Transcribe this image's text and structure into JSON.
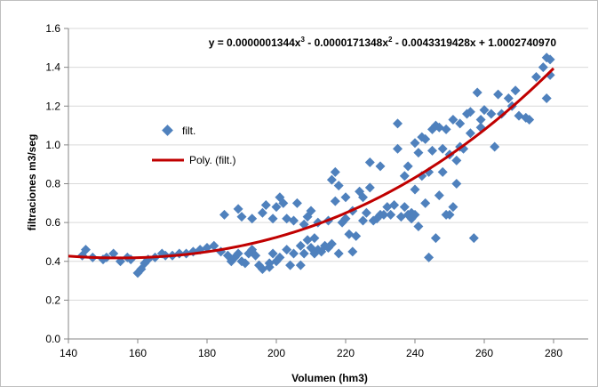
{
  "chart_data": {
    "type": "scatter",
    "xlabel": "Volumen (hm3)",
    "ylabel": "filtraciones m3/seg",
    "xlim": [
      140,
      290
    ],
    "ylim": [
      0.0,
      1.6
    ],
    "x_ticks": [
      "140",
      "160",
      "180",
      "200",
      "220",
      "240",
      "260",
      "280"
    ],
    "y_ticks": [
      "0.0",
      "0.2",
      "0.4",
      "0.6",
      "0.8",
      "1.0",
      "1.2",
      "1.4",
      "1.6"
    ],
    "grid": "horizontal",
    "legend_position": "left",
    "marker_color": "#4F81BD",
    "trend_color": "#C00000",
    "equation": {
      "prefix": "y = 0.0000001344x",
      "exp1": "3",
      "mid": " - 0.0000171348x",
      "exp2": "2",
      "suffix": " - 0.0043319428x + 1.0002740970"
    },
    "trendline": {
      "name": "Poly. (filt.)",
      "type": "polynomial",
      "coefficients": [
        1.344e-07,
        -1.71348e-05,
        -0.0043319428,
        1.000274097
      ],
      "x_range": [
        140,
        280
      ]
    },
    "series": [
      {
        "name": "filt.",
        "points": [
          [
            144,
            0.43
          ],
          [
            145,
            0.46
          ],
          [
            147,
            0.42
          ],
          [
            150,
            0.41
          ],
          [
            151,
            0.42
          ],
          [
            153,
            0.44
          ],
          [
            155,
            0.4
          ],
          [
            157,
            0.42
          ],
          [
            158,
            0.41
          ],
          [
            160,
            0.34
          ],
          [
            161,
            0.36
          ],
          [
            162,
            0.39
          ],
          [
            163,
            0.41
          ],
          [
            165,
            0.42
          ],
          [
            167,
            0.44
          ],
          [
            168,
            0.43
          ],
          [
            170,
            0.43
          ],
          [
            172,
            0.44
          ],
          [
            174,
            0.44
          ],
          [
            176,
            0.45
          ],
          [
            178,
            0.46
          ],
          [
            180,
            0.47
          ],
          [
            182,
            0.48
          ],
          [
            184,
            0.45
          ],
          [
            185,
            0.64
          ],
          [
            186,
            0.43
          ],
          [
            187,
            0.4
          ],
          [
            188,
            0.42
          ],
          [
            189,
            0.44
          ],
          [
            189,
            0.67
          ],
          [
            190,
            0.63
          ],
          [
            190,
            0.4
          ],
          [
            191,
            0.39
          ],
          [
            192,
            0.44
          ],
          [
            193,
            0.46
          ],
          [
            193,
            0.62
          ],
          [
            194,
            0.43
          ],
          [
            195,
            0.38
          ],
          [
            196,
            0.36
          ],
          [
            196,
            0.65
          ],
          [
            197,
            0.69
          ],
          [
            198,
            0.39
          ],
          [
            198,
            0.37
          ],
          [
            199,
            0.44
          ],
          [
            199,
            0.62
          ],
          [
            200,
            0.68
          ],
          [
            200,
            0.4
          ],
          [
            201,
            0.42
          ],
          [
            201,
            0.73
          ],
          [
            202,
            0.7
          ],
          [
            203,
            0.46
          ],
          [
            203,
            0.62
          ],
          [
            204,
            0.38
          ],
          [
            205,
            0.44
          ],
          [
            205,
            0.61
          ],
          [
            206,
            0.7
          ],
          [
            207,
            0.38
          ],
          [
            207,
            0.48
          ],
          [
            208,
            0.44
          ],
          [
            208,
            0.59
          ],
          [
            209,
            0.63
          ],
          [
            209,
            0.51
          ],
          [
            210,
            0.47
          ],
          [
            210,
            0.66
          ],
          [
            211,
            0.44
          ],
          [
            211,
            0.52
          ],
          [
            212,
            0.46
          ],
          [
            212,
            0.6
          ],
          [
            213,
            0.45
          ],
          [
            214,
            0.48
          ],
          [
            215,
            0.47
          ],
          [
            215,
            0.61
          ],
          [
            216,
            0.49
          ],
          [
            216,
            0.82
          ],
          [
            217,
            0.86
          ],
          [
            217,
            0.71
          ],
          [
            218,
            0.44
          ],
          [
            218,
            0.79
          ],
          [
            219,
            0.6
          ],
          [
            220,
            0.62
          ],
          [
            220,
            0.73
          ],
          [
            221,
            0.54
          ],
          [
            222,
            0.45
          ],
          [
            222,
            0.66
          ],
          [
            223,
            0.53
          ],
          [
            224,
            0.76
          ],
          [
            225,
            0.73
          ],
          [
            225,
            0.61
          ],
          [
            226,
            0.65
          ],
          [
            227,
            0.91
          ],
          [
            227,
            0.78
          ],
          [
            228,
            0.61
          ],
          [
            229,
            0.62
          ],
          [
            230,
            0.64
          ],
          [
            230,
            0.89
          ],
          [
            231,
            0.64
          ],
          [
            232,
            0.68
          ],
          [
            233,
            0.64
          ],
          [
            234,
            0.69
          ],
          [
            235,
            0.98
          ],
          [
            235,
            1.11
          ],
          [
            236,
            0.63
          ],
          [
            237,
            0.68
          ],
          [
            237,
            0.84
          ],
          [
            238,
            0.64
          ],
          [
            238,
            0.89
          ],
          [
            239,
            0.65
          ],
          [
            239,
            0.62
          ],
          [
            240,
            0.64
          ],
          [
            240,
            0.77
          ],
          [
            240,
            1.01
          ],
          [
            241,
            0.58
          ],
          [
            241,
            0.96
          ],
          [
            242,
            1.04
          ],
          [
            242,
            0.84
          ],
          [
            243,
            0.7
          ],
          [
            243,
            1.03
          ],
          [
            244,
            0.42
          ],
          [
            244,
            0.86
          ],
          [
            245,
            0.97
          ],
          [
            245,
            1.08
          ],
          [
            246,
            0.52
          ],
          [
            246,
            1.1
          ],
          [
            247,
            1.09
          ],
          [
            247,
            0.74
          ],
          [
            248,
            0.86
          ],
          [
            248,
            0.98
          ],
          [
            249,
            0.64
          ],
          [
            249,
            1.08
          ],
          [
            250,
            0.64
          ],
          [
            250,
            0.95
          ],
          [
            251,
            0.68
          ],
          [
            251,
            1.13
          ],
          [
            252,
            0.8
          ],
          [
            252,
            0.92
          ],
          [
            253,
            0.99
          ],
          [
            253,
            1.11
          ],
          [
            254,
            0.98
          ],
          [
            255,
            1.16
          ],
          [
            256,
            1.17
          ],
          [
            256,
            1.06
          ],
          [
            257,
            0.52
          ],
          [
            258,
            1.27
          ],
          [
            259,
            1.13
          ],
          [
            259,
            1.09
          ],
          [
            260,
            1.18
          ],
          [
            262,
            1.16
          ],
          [
            263,
            0.99
          ],
          [
            264,
            1.26
          ],
          [
            265,
            1.16
          ],
          [
            267,
            1.24
          ],
          [
            268,
            1.2
          ],
          [
            269,
            1.28
          ],
          [
            270,
            1.15
          ],
          [
            272,
            1.14
          ],
          [
            273,
            1.13
          ],
          [
            275,
            1.35
          ],
          [
            277,
            1.4
          ],
          [
            278,
            1.45
          ],
          [
            278,
            1.24
          ],
          [
            279,
            1.36
          ],
          [
            279,
            1.44
          ]
        ]
      }
    ]
  }
}
